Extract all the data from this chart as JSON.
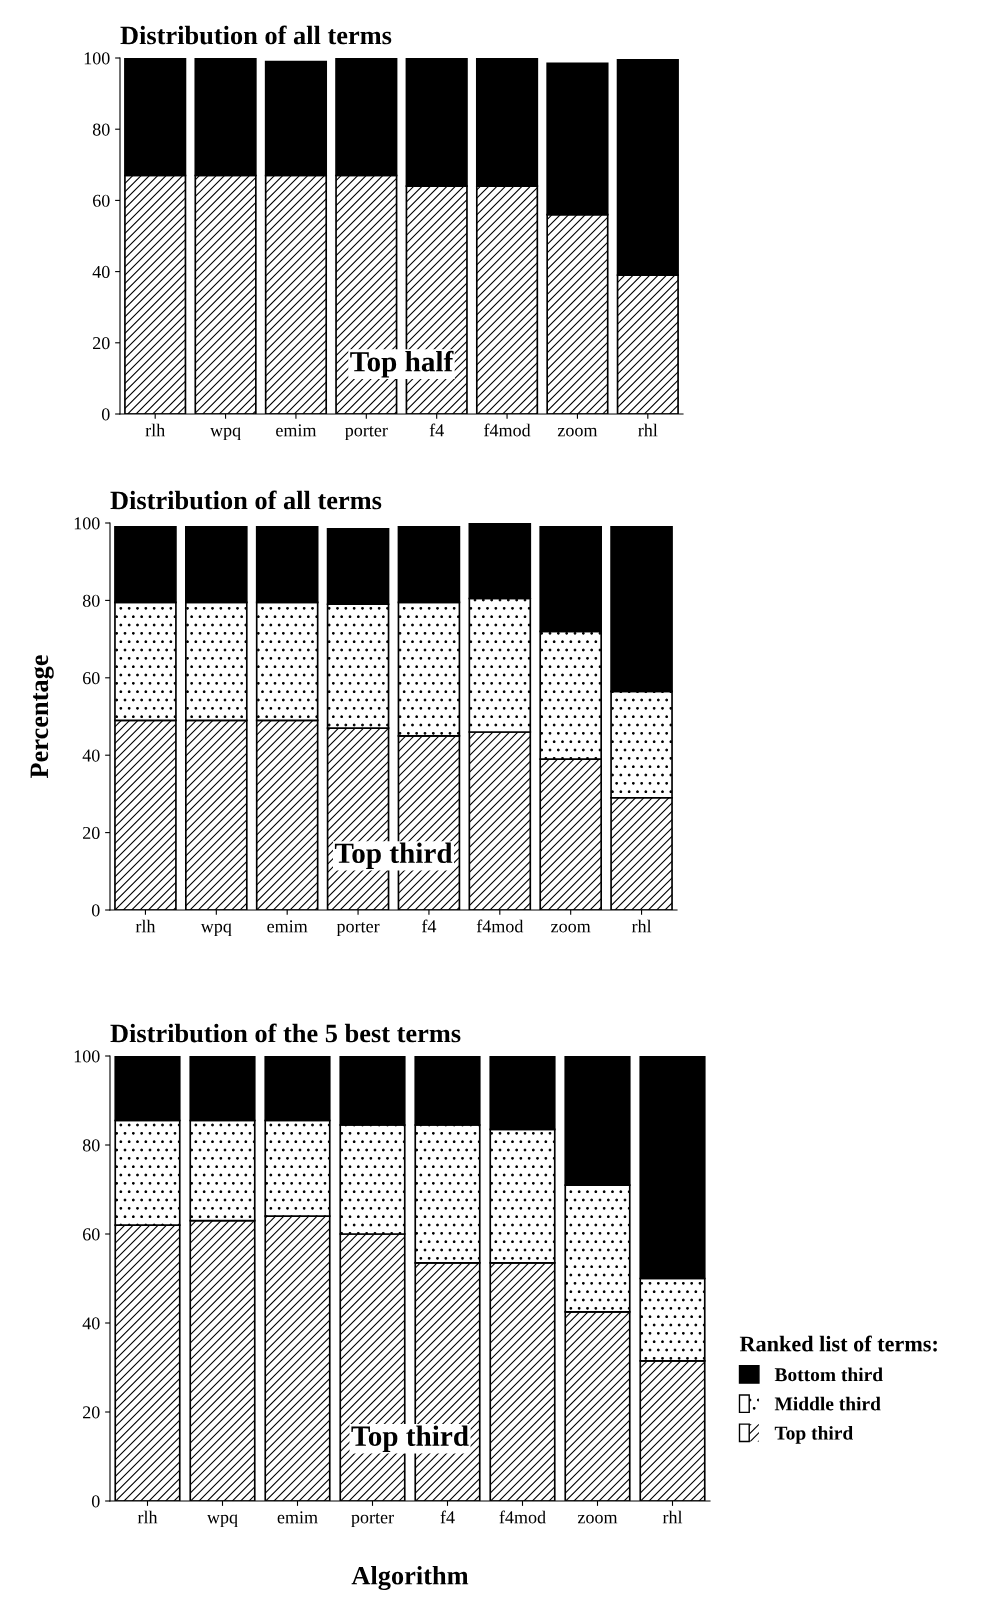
{
  "chart_data": [
    {
      "type": "bar",
      "title": "Distribution of all terms",
      "stacked": true,
      "categories": [
        "rlh",
        "wpq",
        "emim",
        "porter",
        "f4",
        "f4mod",
        "zoom",
        "rhl"
      ],
      "series": [
        {
          "color": "#ffffff",
          "values": [
            67,
            67,
            67,
            67,
            64,
            64,
            56,
            39
          ]
        },
        {
          "color": "#000000",
          "values": [
            33,
            33,
            32,
            33,
            36,
            36,
            42.5,
            60.5
          ]
        }
      ],
      "ylim": [
        0,
        100
      ],
      "yticks": [
        0,
        20,
        40,
        60,
        80,
        100
      ],
      "annotations": [
        "Top half"
      ],
      "grid": false,
      "legend": false
    },
    {
      "type": "bar",
      "title": "Distribution of all terms",
      "ylabel": "Percentage",
      "stacked": true,
      "categories": [
        "rlh",
        "wpq",
        "emim",
        "porter",
        "f4",
        "f4mod",
        "zoom",
        "rhl"
      ],
      "series": [
        {
          "color": "#ffffff",
          "values": [
            49,
            49,
            49,
            47,
            45,
            46,
            39,
            29
          ]
        },
        {
          "color": "#ffffff",
          "values": [
            30.5,
            30.5,
            30.5,
            32,
            34.5,
            34.5,
            33,
            27.5
          ]
        },
        {
          "color": "#000000",
          "values": [
            19.5,
            19.5,
            19.5,
            19.5,
            19.5,
            19.5,
            27,
            42.5
          ]
        }
      ],
      "ylim": [
        0,
        100
      ],
      "yticks": [
        0,
        20,
        40,
        60,
        80,
        100
      ],
      "annotations": [
        "Top third"
      ],
      "grid": false,
      "legend": false
    },
    {
      "type": "bar",
      "title": "Distribution of the 5 best terms",
      "xlabel": "Algorithm",
      "legend_title": "Ranked list of terms:",
      "stacked": true,
      "categories": [
        "rlh",
        "wpq",
        "emim",
        "porter",
        "f4",
        "f4mod",
        "zoom",
        "rhl"
      ],
      "series": [
        {
          "name": "Top third",
          "color": "#ffffff",
          "values": [
            62,
            63,
            64,
            60,
            53.5,
            53.5,
            42.5,
            31.5
          ]
        },
        {
          "name": "Middle third",
          "color": "#ffffff",
          "values": [
            23.5,
            22.5,
            21.5,
            24.5,
            31,
            30,
            28.5,
            18.5
          ]
        },
        {
          "name": "Bottom third",
          "color": "#000000",
          "values": [
            14.5,
            14.5,
            14.5,
            15.5,
            15.5,
            16.5,
            29,
            50
          ]
        }
      ],
      "ylim": [
        0,
        100
      ],
      "yticks": [
        0,
        20,
        40,
        60,
        80,
        100
      ],
      "annotations": [
        "Top third"
      ],
      "grid": false,
      "legend": "right"
    }
  ]
}
